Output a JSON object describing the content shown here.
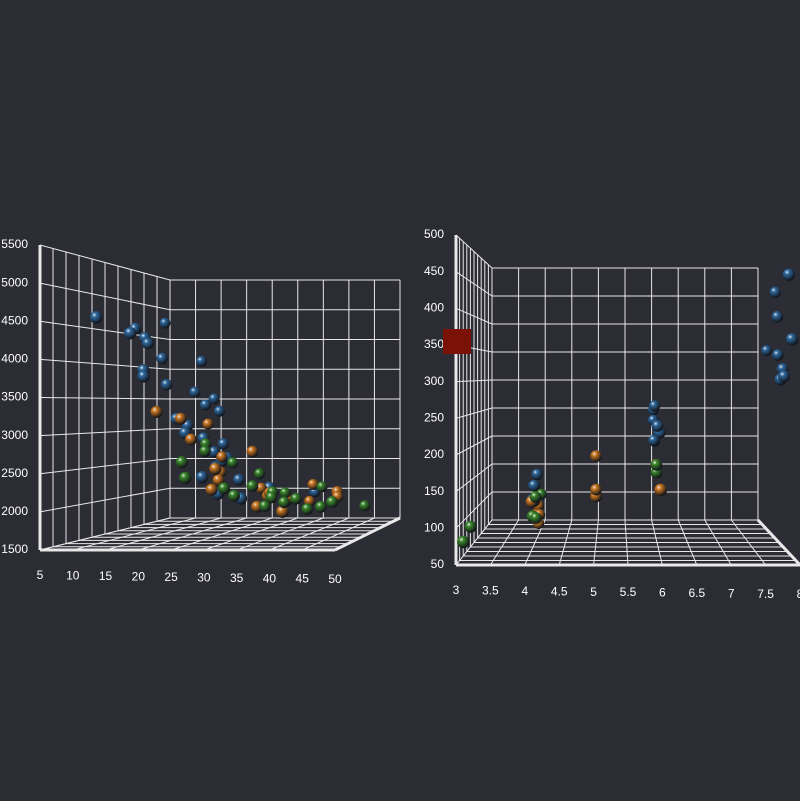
{
  "chart_data": [
    {
      "type": "scatter3d",
      "xlim": [
        5,
        50
      ],
      "xticks": [
        5,
        10,
        15,
        20,
        25,
        30,
        35,
        40,
        45,
        50
      ],
      "ylim": [
        1500,
        5500
      ],
      "yticks": [
        1500,
        2000,
        2500,
        3000,
        3500,
        4000,
        4500,
        5000,
        5500
      ],
      "grid": true,
      "series": [
        {
          "color": "#2f6aa0",
          "x": [
            9,
            10,
            11,
            12,
            13,
            13,
            14,
            14,
            15,
            15,
            16,
            16,
            17,
            18,
            18,
            19,
            20,
            20,
            21,
            22,
            23,
            24,
            25,
            26,
            27,
            28,
            30,
            32,
            34,
            36
          ],
          "values": [
            4700,
            4600,
            4400,
            4500,
            4300,
            4100,
            4400,
            3900,
            3700,
            4100,
            3600,
            3800,
            3500,
            3400,
            3200,
            3300,
            3100,
            2900,
            3000,
            2800,
            2700,
            2600,
            2500,
            2400,
            2600,
            2300,
            2200,
            2100,
            2200,
            2000
          ]
        },
        {
          "color": "#d07a22",
          "x": [
            22,
            24,
            25,
            26,
            28,
            30,
            31,
            33,
            36,
            40,
            44,
            29,
            21,
            18,
            16,
            19,
            27,
            35,
            43,
            37
          ],
          "values": [
            2600,
            2400,
            2300,
            2200,
            2100,
            2000,
            1900,
            2100,
            2000,
            1950,
            2100,
            2700,
            2900,
            3100,
            3300,
            3200,
            2500,
            1850,
            2000,
            2150
          ]
        },
        {
          "color": "#3b8a2c",
          "x": [
            24,
            27,
            29,
            31,
            32,
            33,
            35,
            37,
            39,
            45,
            46,
            23,
            22,
            19,
            20,
            26,
            34,
            38,
            42,
            30
          ],
          "values": [
            2400,
            2200,
            2100,
            2000,
            1900,
            2100,
            1950,
            2000,
            1850,
            2000,
            1800,
            2500,
            2600,
            2800,
            2700,
            2300,
            2050,
            2100,
            1900,
            2200
          ]
        }
      ]
    },
    {
      "type": "scatter3d",
      "xlim": [
        3,
        8
      ],
      "xticks": [
        3,
        3.5,
        4,
        4.5,
        5,
        5.5,
        6,
        6.5,
        7,
        7.5,
        8
      ],
      "ylim": [
        50,
        500
      ],
      "yticks": [
        50,
        100,
        150,
        200,
        250,
        300,
        350,
        400,
        450,
        500
      ],
      "grid": true,
      "series": [
        {
          "color": "#2f6aa0",
          "x": [
            8,
            8,
            8,
            8,
            8,
            8,
            8,
            8,
            8,
            6,
            6,
            6,
            6,
            6,
            6,
            6,
            4,
            4,
            4,
            4
          ],
          "values": [
            350,
            360,
            400,
            318,
            302,
            440,
            455,
            307,
            340,
            250,
            258,
            225,
            232,
            200,
            231,
            199,
            140,
            151,
            122,
            98
          ]
        },
        {
          "color": "#d07a22",
          "x": [
            4,
            4,
            4,
            4,
            4,
            4,
            5,
            5,
            5,
            6,
            6
          ],
          "values": [
            97,
            90,
            116,
            121,
            79,
            68,
            121,
            183,
            131,
            146,
            168
          ]
        },
        {
          "color": "#3b8a2c",
          "x": [
            3,
            3,
            4,
            4,
            4,
            4,
            6,
            6
          ],
          "values": [
            70,
            80,
            97,
            108,
            119,
            85,
            156,
            168
          ]
        }
      ]
    }
  ]
}
